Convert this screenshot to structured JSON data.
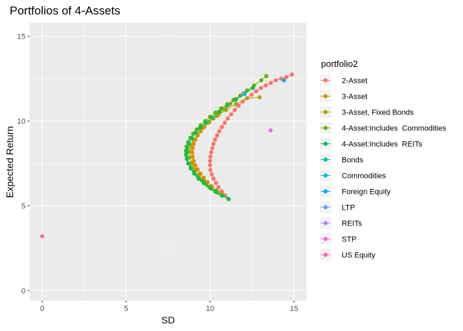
{
  "chart_data": {
    "type": "scatter",
    "title": "Portfolios of 4-Assets",
    "xlabel": "SD",
    "ylabel": "Expected Return",
    "xlim": [
      -0.75,
      15.75
    ],
    "ylim": [
      -0.6,
      15.8
    ],
    "xticks": [
      0,
      5,
      10,
      15
    ],
    "yticks": [
      0,
      5,
      10,
      15
    ],
    "grid": true,
    "legend_position": "right",
    "legend_title": "portfolio2",
    "series": [
      {
        "name": "2-Asset",
        "color": "#F8766D",
        "line": true,
        "x": [
          11.1,
          10.9,
          10.7,
          10.5,
          10.35,
          10.2,
          10.1,
          10.02,
          10.0,
          10.0,
          10.02,
          10.07,
          10.13,
          10.2,
          10.3,
          10.42,
          10.55,
          10.7,
          10.87,
          11.05,
          11.25,
          11.47,
          11.7,
          11.95,
          12.2,
          12.47,
          12.75,
          13.03,
          13.32,
          13.62,
          13.92,
          14.23,
          14.55,
          14.88
        ],
        "y": [
          5.4,
          5.6,
          5.85,
          6.1,
          6.35,
          6.6,
          6.85,
          7.1,
          7.4,
          7.65,
          7.9,
          8.15,
          8.4,
          8.65,
          8.9,
          9.15,
          9.4,
          9.65,
          9.9,
          10.15,
          10.4,
          10.65,
          10.9,
          11.15,
          11.35,
          11.55,
          11.75,
          11.95,
          12.1,
          12.25,
          12.4,
          12.5,
          12.6,
          12.75
        ]
      },
      {
        "name": "3-Asset",
        "color": "#DB8E00",
        "line": true,
        "x": [
          11.1,
          10.75,
          10.4,
          10.1,
          9.85,
          9.62,
          9.42,
          9.25,
          9.12,
          9.02,
          8.96,
          8.94,
          8.96,
          9.02,
          9.12,
          9.26,
          9.44,
          9.66,
          9.92,
          10.2,
          10.52,
          10.85,
          11.2,
          11.55
        ],
        "y": [
          5.4,
          5.65,
          5.9,
          6.15,
          6.4,
          6.65,
          6.9,
          7.15,
          7.4,
          7.65,
          7.9,
          8.15,
          8.4,
          8.65,
          8.9,
          9.15,
          9.4,
          9.65,
          9.9,
          10.15,
          10.4,
          10.7,
          11.0,
          11.3
        ]
      },
      {
        "name": "3-Asset, Fixed Bonds",
        "color": "#AEA200",
        "line": true,
        "x": [
          11.1,
          10.5,
          10.0,
          9.65,
          9.35,
          9.1,
          8.9,
          8.8,
          8.78,
          8.85,
          9.0,
          9.25,
          9.55,
          9.95,
          10.4,
          10.95,
          11.55,
          12.2,
          12.95
        ],
        "y": [
          5.4,
          5.75,
          6.1,
          6.45,
          6.8,
          7.15,
          7.5,
          7.85,
          8.2,
          8.55,
          8.9,
          9.25,
          9.6,
          9.95,
          10.3,
          10.65,
          11.0,
          11.35,
          11.4
        ]
      },
      {
        "name": "4-Asset:Includes  Commodities",
        "color": "#64B200",
        "line": true,
        "x": [
          11.1,
          10.75,
          10.4,
          10.08,
          9.78,
          9.5,
          9.25,
          9.04,
          8.86,
          8.72,
          8.62,
          8.57,
          8.56,
          8.6,
          8.69,
          8.82,
          8.99,
          9.2,
          9.44,
          9.71,
          10.0,
          10.32,
          10.66,
          11.02,
          11.4,
          11.8,
          12.2,
          12.62,
          13.05,
          13.35
        ],
        "y": [
          5.4,
          5.6,
          5.8,
          6.0,
          6.25,
          6.5,
          6.75,
          7.0,
          7.25,
          7.5,
          7.75,
          8.0,
          8.25,
          8.5,
          8.75,
          9.0,
          9.25,
          9.5,
          9.75,
          10.0,
          10.25,
          10.5,
          10.75,
          11.0,
          11.25,
          11.5,
          11.8,
          12.1,
          12.4,
          12.65
        ]
      },
      {
        "name": "4-Asset:Includes  REITs",
        "color": "#00BD5C",
        "line": true,
        "x": [
          11.1,
          10.7,
          10.3,
          9.95,
          9.62,
          9.32,
          9.06,
          8.85,
          8.7,
          8.62,
          8.6,
          8.64,
          8.74,
          8.9,
          9.12,
          9.4,
          9.74,
          10.12,
          10.55,
          11.02,
          11.52,
          12.05,
          12.55
        ],
        "y": [
          5.4,
          5.6,
          5.85,
          6.1,
          6.35,
          6.6,
          6.9,
          7.2,
          7.5,
          7.8,
          8.1,
          8.4,
          8.7,
          9.0,
          9.3,
          9.6,
          9.9,
          10.2,
          10.55,
          10.9,
          11.25,
          11.6,
          11.95
        ]
      },
      {
        "name": "Bonds",
        "color": "#00C1A7",
        "line": false,
        "x": [],
        "y": []
      },
      {
        "name": "Commodities",
        "color": "#00BADE",
        "line": false,
        "x": [],
        "y": []
      },
      {
        "name": "Foreign Equity",
        "color": "#00A6FF",
        "line": false,
        "x": [
          14.4
        ],
        "y": [
          12.4
        ]
      },
      {
        "name": "LTP",
        "color": "#B385FF",
        "line": false,
        "x": [],
        "y": []
      },
      {
        "name": "REITs",
        "color": "#EF67EB",
        "line": false,
        "x": [
          13.6
        ],
        "y": [
          9.45
        ]
      },
      {
        "name": "STP",
        "color": "#FF63B6",
        "line": false,
        "x": [
          0.0
        ],
        "y": [
          3.2
        ]
      },
      {
        "name": "US Equity",
        "color": "#F8766D",
        "line": false,
        "x": [],
        "y": []
      }
    ],
    "legend": [
      {
        "label": "2-Asset",
        "color": "#F8766D"
      },
      {
        "label": "3-Asset",
        "color": "#DB8E00"
      },
      {
        "label": "3-Asset, Fixed Bonds",
        "color": "#AEA200"
      },
      {
        "label": "4-Asset:Includes  Commodities",
        "color": "#64B200"
      },
      {
        "label": "4-Asset:Includes  REITs",
        "color": "#00BD5C"
      },
      {
        "label": "Bonds",
        "color": "#00C1A7"
      },
      {
        "label": "Commodities",
        "color": "#00BADE"
      },
      {
        "label": "Foreign Equity",
        "color": "#00A6FF"
      },
      {
        "label": "LTP",
        "color": "#619CFF"
      },
      {
        "label": "REITs",
        "color": "#B983FF"
      },
      {
        "label": "STP",
        "color": "#F564E3"
      },
      {
        "label": "US Equity",
        "color": "#FF64B0"
      }
    ],
    "extra_points": [
      {
        "x": 12.0,
        "y": 11.65,
        "color": "#619CFF"
      }
    ],
    "panel_bg": "#EBEBEB",
    "grid_color": "#FFFFFF"
  }
}
